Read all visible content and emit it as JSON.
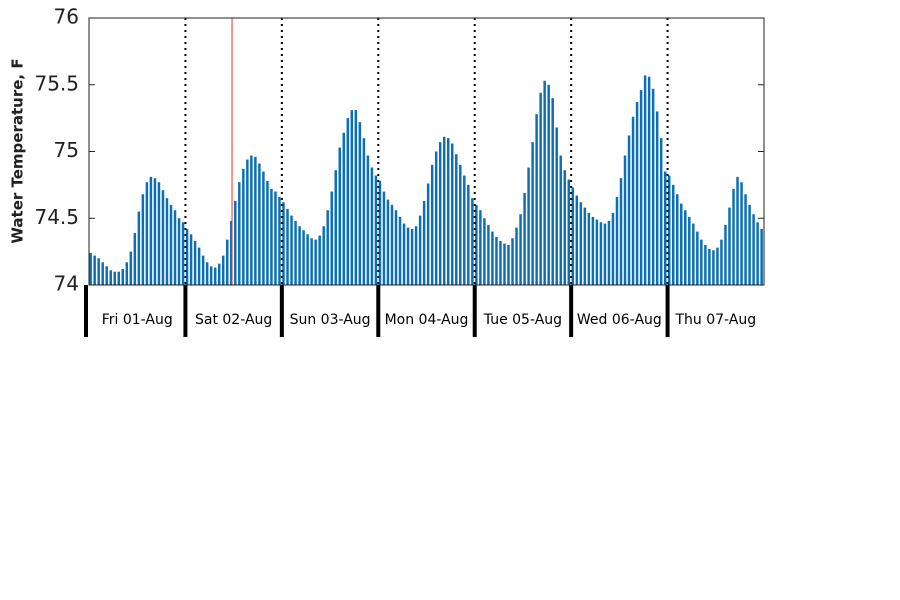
{
  "chart_data": {
    "type": "bar",
    "ylabel": "Water Temperature, F",
    "categories": [
      "Fri 01-Aug",
      "Sat 02-Aug",
      "Sun 03-Aug",
      "Mon 04-Aug",
      "Tue 05-Aug",
      "Wed 06-Aug",
      "Thu 07-Aug"
    ],
    "values": [
      [
        74.24,
        74.22,
        74.2,
        74.17,
        74.14,
        74.11,
        74.1,
        74.1,
        74.12,
        74.17,
        74.25,
        74.39,
        74.55,
        74.68,
        74.77,
        74.81,
        74.8,
        74.77,
        74.71,
        74.65,
        74.6,
        74.56,
        74.5,
        74.47
      ],
      [
        74.42,
        74.38,
        74.33,
        74.28,
        74.22,
        74.17,
        74.14,
        74.13,
        74.16,
        74.22,
        74.34,
        74.48,
        74.63,
        74.77,
        74.87,
        74.94,
        74.97,
        74.96,
        74.91,
        74.85,
        74.78,
        74.72,
        74.7,
        74.66
      ],
      [
        74.62,
        74.57,
        74.52,
        74.48,
        74.44,
        74.41,
        74.38,
        74.35,
        74.34,
        74.37,
        74.44,
        74.56,
        74.7,
        74.86,
        75.03,
        75.14,
        75.25,
        75.31,
        75.31,
        75.22,
        75.1,
        74.97,
        74.88,
        74.82
      ],
      [
        74.78,
        74.7,
        74.64,
        74.6,
        74.56,
        74.51,
        74.46,
        74.43,
        74.42,
        74.44,
        74.52,
        74.63,
        74.76,
        74.9,
        75.0,
        75.07,
        75.11,
        75.1,
        75.06,
        74.98,
        74.9,
        74.82,
        74.75,
        74.65
      ],
      [
        74.6,
        74.56,
        74.5,
        74.45,
        74.4,
        74.36,
        74.33,
        74.31,
        74.3,
        74.35,
        74.43,
        74.53,
        74.69,
        74.88,
        75.07,
        75.28,
        75.44,
        75.53,
        75.5,
        75.4,
        75.18,
        74.97,
        74.86,
        74.79
      ],
      [
        74.73,
        74.67,
        74.62,
        74.58,
        74.54,
        74.51,
        74.49,
        74.47,
        74.46,
        74.48,
        74.54,
        74.66,
        74.8,
        74.97,
        75.12,
        75.26,
        75.37,
        75.46,
        75.57,
        75.56,
        75.47,
        75.3,
        75.1,
        74.85
      ],
      [
        74.82,
        74.75,
        74.68,
        74.61,
        74.56,
        74.51,
        74.46,
        74.4,
        74.34,
        74.3,
        74.27,
        74.26,
        74.28,
        74.34,
        74.45,
        74.58,
        74.72,
        74.81,
        74.77,
        74.68,
        74.6,
        74.53,
        74.47,
        74.42
      ]
    ],
    "color": "#0d6fb3",
    "ylim": [
      74,
      76
    ],
    "yticks": [
      74,
      74.5,
      75,
      75.5,
      76
    ],
    "marker": {
      "category": 1,
      "index": 11,
      "color": "#e8382c"
    }
  }
}
